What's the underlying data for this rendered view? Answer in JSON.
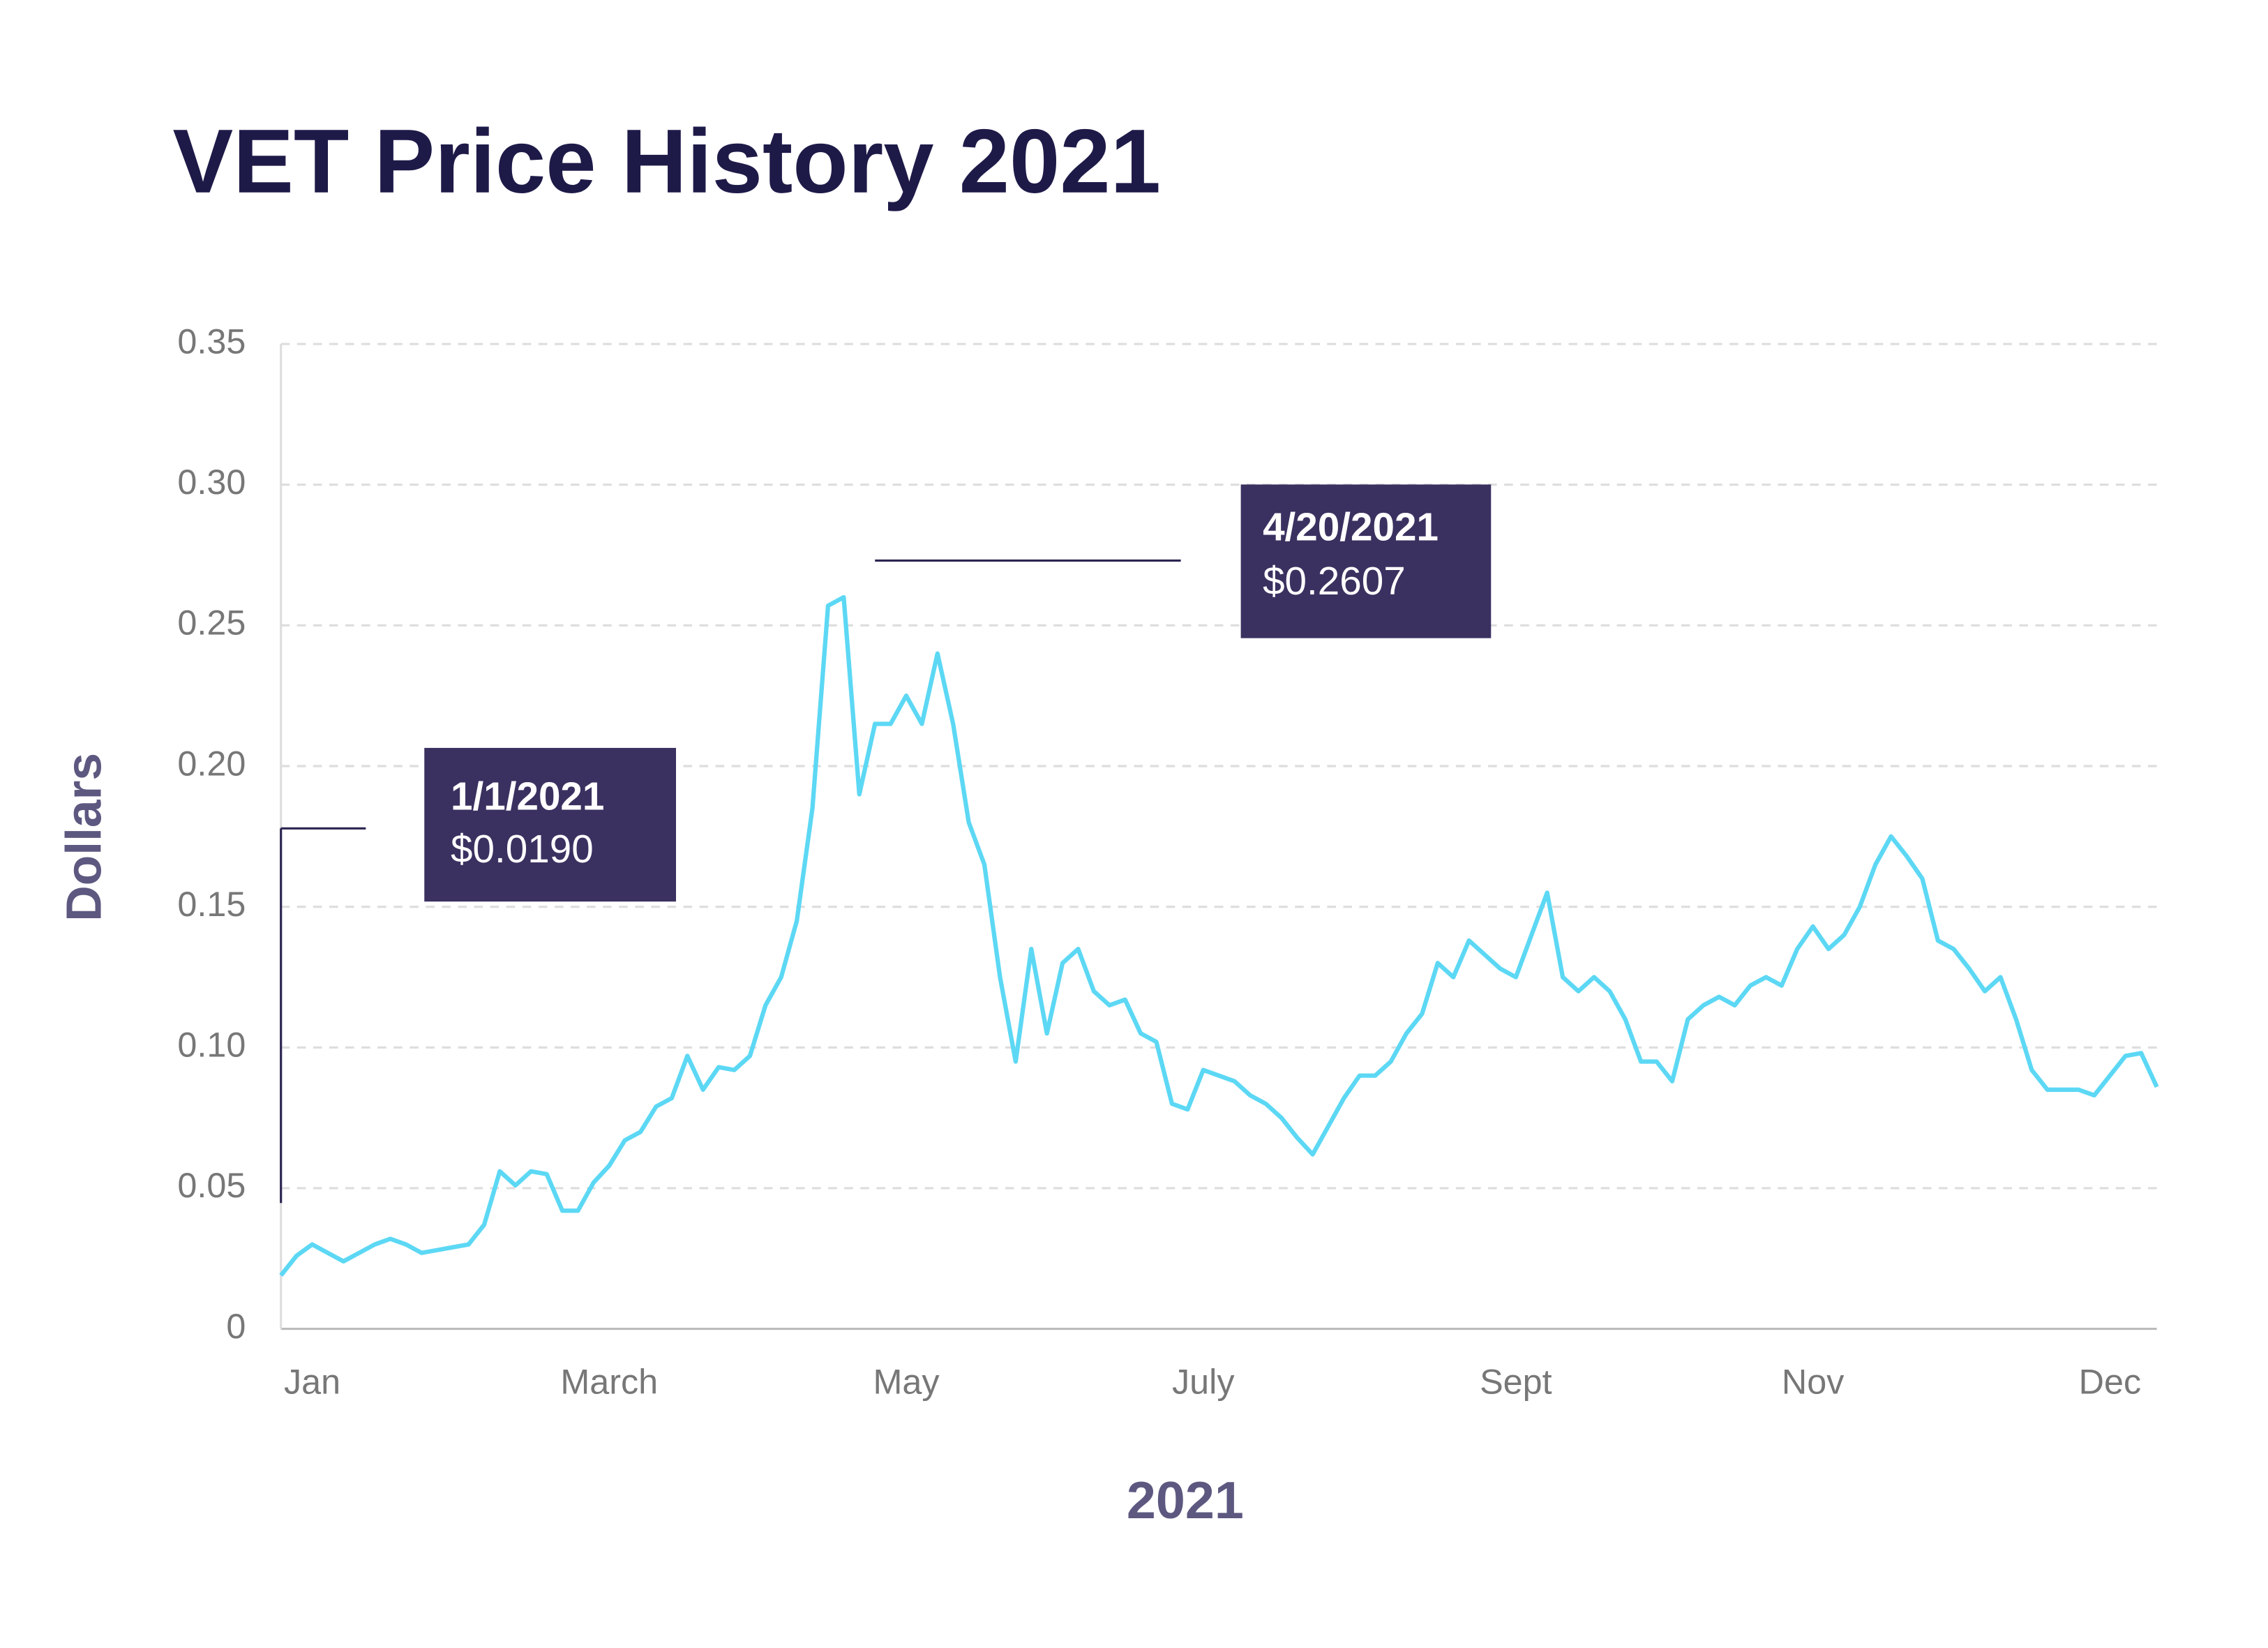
{
  "chart_data": {
    "type": "line",
    "title": "VET Price History 2021",
    "y_label": "Dollars",
    "x_label": "2021",
    "color": "#5cd8f4",
    "grid": true,
    "ylim": [
      0,
      0.35
    ],
    "yticks": [
      0,
      0.05,
      {
        "value": 0.1,
        "label": "0.10"
      },
      0.15,
      {
        "value": 0.2,
        "label": "0.20"
      },
      0.25,
      {
        "value": 0.3,
        "label": "0.30"
      },
      0.35
    ],
    "categories": [
      null,
      null,
      "Jan",
      null,
      null,
      null,
      null,
      null,
      null,
      null,
      null,
      null,
      null,
      null,
      null,
      null,
      null,
      null,
      null,
      null,
      null,
      "March",
      null,
      null,
      null,
      null,
      null,
      null,
      null,
      null,
      null,
      null,
      null,
      null,
      null,
      null,
      null,
      null,
      null,
      null,
      "May",
      null,
      null,
      null,
      null,
      null,
      null,
      null,
      null,
      null,
      null,
      null,
      null,
      null,
      null,
      null,
      null,
      null,
      null,
      "July",
      null,
      null,
      null,
      null,
      null,
      null,
      null,
      null,
      null,
      null,
      null,
      null,
      null,
      null,
      null,
      null,
      null,
      null,
      null,
      "Sept",
      null,
      null,
      null,
      null,
      null,
      null,
      null,
      null,
      null,
      null,
      null,
      null,
      null,
      null,
      null,
      null,
      null,
      null,
      "Nov",
      null,
      null,
      null,
      null,
      null,
      null,
      null,
      null,
      null,
      null,
      null,
      null,
      null,
      null,
      null,
      null,
      null,
      null,
      "Dec",
      null,
      null,
      null
    ],
    "values": [
      0.019,
      0.026,
      0.03,
      0.027,
      0.024,
      0.027,
      0.03,
      0.032,
      0.03,
      0.027,
      0.028,
      0.029,
      0.03,
      0.037,
      0.056,
      0.051,
      0.056,
      0.055,
      0.042,
      0.042,
      0.052,
      0.058,
      0.067,
      0.07,
      0.079,
      0.082,
      0.097,
      0.085,
      0.093,
      0.092,
      0.097,
      0.115,
      0.125,
      0.145,
      0.185,
      0.257,
      0.26,
      0.19,
      0.215,
      0.215,
      0.225,
      0.215,
      0.24,
      0.215,
      0.18,
      0.165,
      0.125,
      0.095,
      0.135,
      0.105,
      0.13,
      0.135,
      0.12,
      0.115,
      0.117,
      0.105,
      0.102,
      0.08,
      0.078,
      0.092,
      0.09,
      0.088,
      0.083,
      0.08,
      0.075,
      0.068,
      0.062,
      0.072,
      0.082,
      0.09,
      0.09,
      0.095,
      0.105,
      0.112,
      0.13,
      0.125,
      0.138,
      0.133,
      0.128,
      0.125,
      0.14,
      0.155,
      0.125,
      0.12,
      0.125,
      0.12,
      0.11,
      0.095,
      0.095,
      0.088,
      0.11,
      0.115,
      0.118,
      0.115,
      0.122,
      0.125,
      0.122,
      0.135,
      0.143,
      0.135,
      0.14,
      0.15,
      0.165,
      0.175,
      0.168,
      0.16,
      0.138,
      0.135,
      0.128,
      0.12,
      0.125,
      0.11,
      0.092,
      0.085,
      0.085,
      0.085,
      0.083,
      0.09,
      0.097,
      0.098,
      0.086
    ],
    "annotations": [
      {
        "date": "1/1/2021",
        "price": "$0.0190"
      },
      {
        "date": "4/20/2021",
        "price": "$0.2607"
      }
    ]
  }
}
